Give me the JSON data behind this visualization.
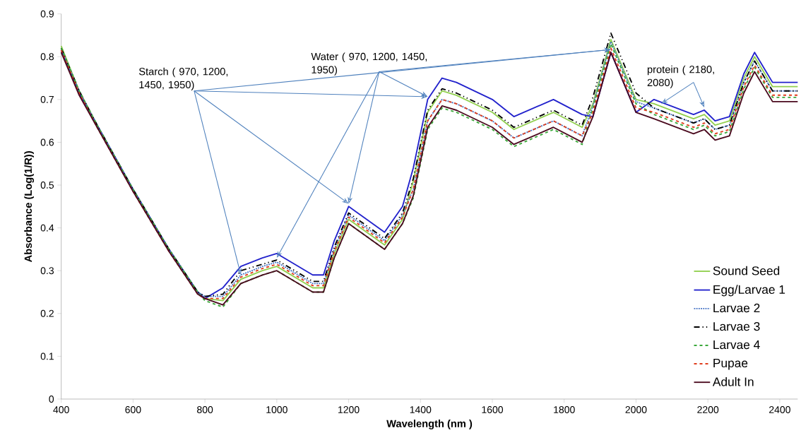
{
  "chart_data": {
    "type": "line",
    "xlabel": "Wavelength (nm )",
    "ylabel": "Absorbance (Log(1/R))",
    "xlim": [
      400,
      2450
    ],
    "ylim": [
      0,
      0.9
    ],
    "xticks": [
      400,
      600,
      800,
      1000,
      1200,
      1400,
      1600,
      1800,
      2000,
      2200,
      2400
    ],
    "yticks": [
      0,
      0.1,
      0.2,
      0.3,
      0.4,
      0.5,
      0.6,
      0.7,
      0.8,
      0.9
    ],
    "grid": false,
    "legend": "bottom right",
    "marker": "none",
    "annotations": [
      {
        "text": "Starch  ( 970, 1200, 1450, 1950)",
        "x": 900,
        "y": 0.29
      },
      {
        "text": "Water ( 970, 1200, 1450, 1950)",
        "x": 1000,
        "y": 0.33
      },
      {
        "text": "protein ( 2180, 2080)",
        "x": 2070,
        "y": 0.69
      }
    ],
    "x": [
      400,
      450,
      500,
      600,
      700,
      780,
      800,
      850,
      900,
      960,
      1000,
      1100,
      1130,
      1160,
      1200,
      1300,
      1350,
      1380,
      1420,
      1460,
      1500,
      1600,
      1660,
      1770,
      1850,
      1880,
      1930,
      1970,
      2000,
      2050,
      2160,
      2190,
      2220,
      2260,
      2300,
      2330,
      2380,
      2450
    ],
    "series": [
      {
        "name": "Sound Seed",
        "color": "#92d050",
        "line_style": "solid",
        "values": [
          0.825,
          0.72,
          0.64,
          0.49,
          0.35,
          0.25,
          0.235,
          0.23,
          0.28,
          0.3,
          0.31,
          0.26,
          0.26,
          0.34,
          0.42,
          0.36,
          0.42,
          0.51,
          0.67,
          0.72,
          0.71,
          0.67,
          0.63,
          0.67,
          0.635,
          0.69,
          0.84,
          0.76,
          0.7,
          0.69,
          0.655,
          0.665,
          0.64,
          0.65,
          0.75,
          0.8,
          0.73,
          0.73
        ]
      },
      {
        "name": "Egg/Larvae 1",
        "color": "#2222cc",
        "line_style": "solid",
        "values": [
          0.815,
          0.715,
          0.64,
          0.49,
          0.35,
          0.25,
          0.235,
          0.26,
          0.31,
          0.33,
          0.34,
          0.29,
          0.29,
          0.37,
          0.45,
          0.39,
          0.45,
          0.54,
          0.7,
          0.75,
          0.74,
          0.7,
          0.66,
          0.7,
          0.665,
          0.66,
          0.81,
          0.73,
          0.67,
          0.7,
          0.665,
          0.675,
          0.65,
          0.66,
          0.76,
          0.81,
          0.74,
          0.74
        ]
      },
      {
        "name": "Larvae 2",
        "color": "#4472c4",
        "line_style": "dotted",
        "values": [
          0.82,
          0.72,
          0.64,
          0.49,
          0.35,
          0.25,
          0.24,
          0.24,
          0.29,
          0.31,
          0.32,
          0.27,
          0.27,
          0.35,
          0.43,
          0.37,
          0.43,
          0.49,
          0.65,
          0.7,
          0.69,
          0.65,
          0.61,
          0.65,
          0.615,
          0.685,
          0.835,
          0.755,
          0.695,
          0.68,
          0.645,
          0.655,
          0.63,
          0.64,
          0.74,
          0.79,
          0.72,
          0.72
        ]
      },
      {
        "name": "Larvae 3",
        "color": "#000000",
        "line_style": "dashdot",
        "values": [
          0.82,
          0.72,
          0.64,
          0.49,
          0.35,
          0.25,
          0.24,
          0.245,
          0.3,
          0.315,
          0.325,
          0.275,
          0.275,
          0.355,
          0.435,
          0.375,
          0.435,
          0.515,
          0.675,
          0.725,
          0.715,
          0.675,
          0.635,
          0.675,
          0.64,
          0.705,
          0.855,
          0.775,
          0.715,
          0.68,
          0.645,
          0.655,
          0.63,
          0.64,
          0.74,
          0.79,
          0.72,
          0.72
        ]
      },
      {
        "name": "Larvae 4",
        "color": "#3aa83a",
        "line_style": "dashed",
        "values": [
          0.82,
          0.72,
          0.64,
          0.49,
          0.35,
          0.25,
          0.23,
          0.215,
          0.27,
          0.29,
          0.3,
          0.25,
          0.25,
          0.33,
          0.41,
          0.35,
          0.41,
          0.47,
          0.63,
          0.68,
          0.67,
          0.63,
          0.59,
          0.63,
          0.595,
          0.68,
          0.83,
          0.75,
          0.69,
          0.665,
          0.63,
          0.64,
          0.615,
          0.625,
          0.725,
          0.775,
          0.705,
          0.705
        ]
      },
      {
        "name": "Pupae",
        "color": "#e03c1c",
        "line_style": "dashed",
        "values": [
          0.815,
          0.715,
          0.635,
          0.485,
          0.345,
          0.245,
          0.235,
          0.235,
          0.285,
          0.305,
          0.315,
          0.265,
          0.265,
          0.345,
          0.425,
          0.365,
          0.425,
          0.49,
          0.65,
          0.7,
          0.69,
          0.65,
          0.61,
          0.65,
          0.615,
          0.67,
          0.82,
          0.74,
          0.68,
          0.67,
          0.635,
          0.645,
          0.62,
          0.63,
          0.73,
          0.78,
          0.71,
          0.71
        ]
      },
      {
        "name": "Adult In",
        "color": "#4a0a1e",
        "line_style": "solid",
        "values": [
          0.81,
          0.71,
          0.635,
          0.485,
          0.345,
          0.245,
          0.235,
          0.22,
          0.27,
          0.29,
          0.3,
          0.25,
          0.25,
          0.33,
          0.41,
          0.35,
          0.41,
          0.475,
          0.635,
          0.685,
          0.675,
          0.635,
          0.595,
          0.635,
          0.6,
          0.66,
          0.81,
          0.73,
          0.67,
          0.655,
          0.62,
          0.63,
          0.605,
          0.615,
          0.715,
          0.765,
          0.695,
          0.695
        ]
      }
    ]
  }
}
